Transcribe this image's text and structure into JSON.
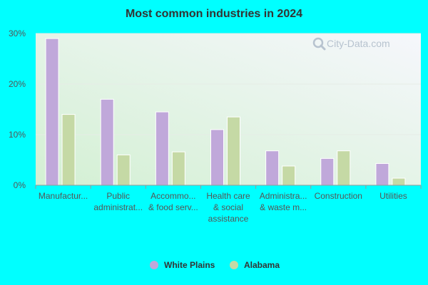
{
  "chart_data": {
    "type": "bar",
    "title": "Most common industries in 2024",
    "xlabel": "",
    "ylabel": "",
    "ylim": [
      0,
      30
    ],
    "y_ticks": [
      "0%",
      "10%",
      "20%",
      "30%"
    ],
    "y_tick_values": [
      0,
      10,
      20,
      30
    ],
    "grid": true,
    "legend_position": "bottom",
    "categories": [
      [
        "Manufactur..."
      ],
      [
        "Public",
        "administrat..."
      ],
      [
        "Accommo...",
        "& food serv..."
      ],
      [
        "Health care",
        "& social",
        "assistance"
      ],
      [
        "Administra...",
        "& waste m..."
      ],
      [
        "Construction"
      ],
      [
        "Utilities"
      ]
    ],
    "series": [
      {
        "name": "White Plains",
        "color": "#c0a8da",
        "values": [
          29.0,
          17.0,
          14.5,
          11.0,
          6.8,
          5.3,
          4.3
        ]
      },
      {
        "name": "Alabama",
        "color": "#c5d9a5",
        "values": [
          14.0,
          6.0,
          6.6,
          13.5,
          3.8,
          6.8,
          1.4
        ]
      }
    ]
  },
  "watermark": {
    "text": "City-Data.com",
    "icon": "magnifier-icon"
  },
  "colors": {
    "page_background": "#00ffff",
    "plot_gradient_top": "#f6f7fc",
    "plot_gradient_bottom": "#d3f0d3",
    "axis": "#999999",
    "grid": "#e6ece6"
  }
}
